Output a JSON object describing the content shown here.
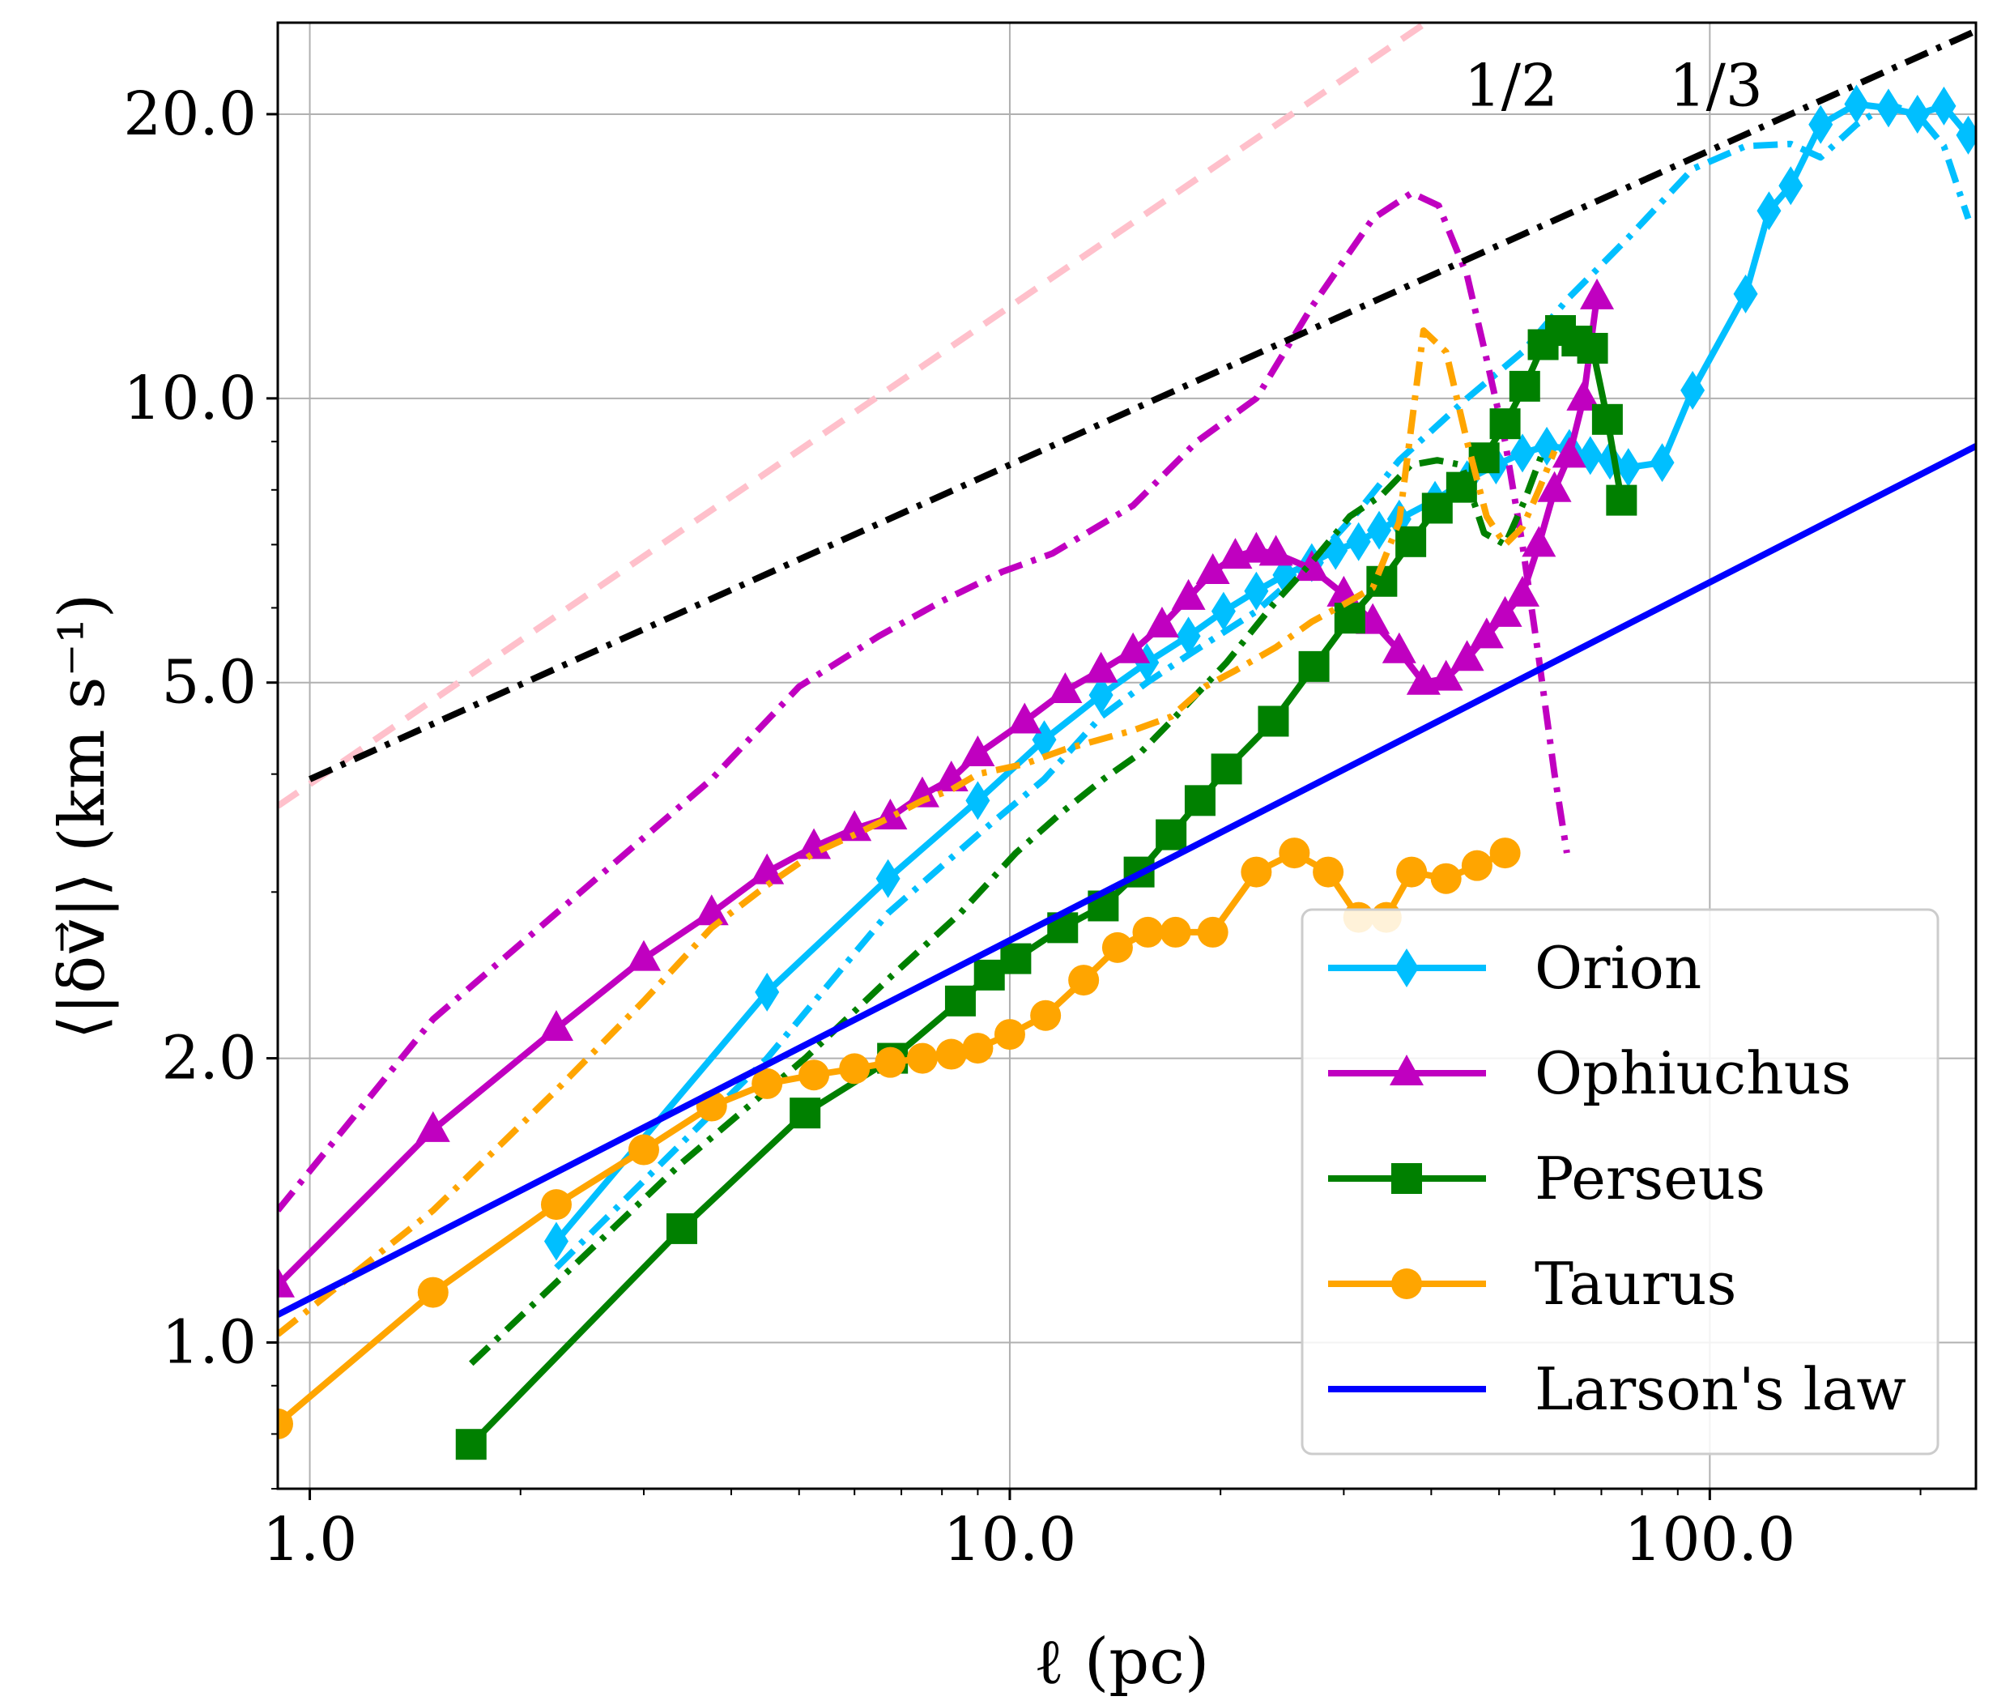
{
  "chart_data": {
    "type": "line",
    "xscale": "log",
    "yscale": "log",
    "xlim": [
      0.9,
      240
    ],
    "ylim": [
      0.7,
      25
    ],
    "xlabel": "ℓ (pc)",
    "ylabel": "⟨|δv⃗|⟩ (km s⁻¹)",
    "xticks": [
      1.0,
      10.0,
      100.0
    ],
    "xtick_labels": [
      "1.0",
      "10.0",
      "100.0"
    ],
    "yticks": [
      1.0,
      2.0,
      5.0,
      10.0,
      20.0
    ],
    "ytick_labels": [
      "1.0",
      "2.0",
      "5.0",
      "10.0",
      "20.0"
    ],
    "grid": true,
    "legend_position": "lower-right",
    "annotations": [
      {
        "text": "1/2",
        "x": 52,
        "y": 21.5
      },
      {
        "text": "1/3",
        "x": 102,
        "y": 21.5
      }
    ],
    "series": [
      {
        "name": "Orion",
        "color": "#00BFFF",
        "style": "solid",
        "marker": "diamond",
        "legend": true,
        "x": [
          2.25,
          4.5,
          6.7,
          9.0,
          11.2,
          13.5,
          15.7,
          18.0,
          20.2,
          22.5,
          24.7,
          27.0,
          29.2,
          31.5,
          33.7,
          36.0,
          40.5,
          45.0,
          49.5,
          54.0,
          58.5,
          63.0,
          67.5,
          72.0,
          76.5,
          85.5,
          94.5,
          112.5,
          121.5,
          130.5,
          144.0,
          162.0,
          180.0,
          198.0,
          216.0,
          234.0
        ],
        "values": [
          1.28,
          2.35,
          3.1,
          3.75,
          4.35,
          4.85,
          5.25,
          5.6,
          5.95,
          6.25,
          6.5,
          6.7,
          6.9,
          7.05,
          7.25,
          7.45,
          7.8,
          8.2,
          8.5,
          8.75,
          8.9,
          8.85,
          8.7,
          8.6,
          8.45,
          8.55,
          10.2,
          12.9,
          15.8,
          16.8,
          19.5,
          20.5,
          20.3,
          20.0,
          20.4,
          19.0
        ]
      },
      {
        "name": "Orion (dash-dot)",
        "color": "#00BFFF",
        "style": "dashdot",
        "marker": "none",
        "legend": false,
        "x": [
          2.25,
          4.5,
          6.7,
          9.0,
          11.2,
          13.5,
          15.7,
          18.0,
          22.5,
          27.0,
          31.5,
          36.0,
          45.0,
          54.0,
          63.0,
          76.5,
          94.5,
          112.5,
          130.5,
          144.0,
          162.0,
          180.0,
          198.0,
          216.0,
          234.0
        ],
        "values": [
          1.2,
          2.0,
          2.85,
          3.45,
          3.95,
          4.6,
          5.0,
          5.35,
          5.95,
          6.7,
          7.6,
          8.6,
          10.0,
          11.2,
          12.8,
          14.8,
          17.5,
          18.5,
          18.6,
          18.0,
          19.5,
          20.5,
          20.0,
          18.5,
          15.5
        ]
      },
      {
        "name": "Ophiuchus",
        "color": "#C000C0",
        "style": "solid",
        "marker": "triangle",
        "legend": true,
        "x": [
          0.9,
          1.5,
          2.25,
          3.0,
          3.75,
          4.5,
          5.25,
          6.0,
          6.75,
          7.5,
          8.25,
          9.0,
          10.5,
          12.0,
          13.5,
          15.0,
          16.5,
          18.0,
          19.5,
          21.0,
          22.5,
          24.0,
          27.0,
          30.0,
          33.0,
          36.0,
          39.0,
          42.0,
          45.0,
          48.0,
          51.0,
          54.0,
          57.0,
          60.0,
          63.0,
          66.0,
          69.0
        ],
        "values": [
          1.15,
          1.68,
          2.15,
          2.55,
          2.85,
          3.15,
          3.35,
          3.5,
          3.6,
          3.8,
          3.95,
          4.2,
          4.55,
          4.9,
          5.15,
          5.4,
          5.75,
          6.15,
          6.55,
          6.8,
          6.9,
          6.85,
          6.6,
          6.2,
          5.8,
          5.4,
          5.0,
          5.05,
          5.3,
          5.6,
          5.9,
          6.2,
          7.0,
          8.0,
          8.7,
          10.0,
          12.8
        ]
      },
      {
        "name": "Ophiuchus (dash-dot)",
        "color": "#C000C0",
        "style": "dashdot",
        "marker": "none",
        "legend": false,
        "x": [
          0.9,
          1.5,
          2.25,
          3.75,
          5.0,
          6.5,
          8.0,
          9.75,
          11.5,
          15.0,
          18.5,
          22.5,
          27.0,
          33.0,
          37.5,
          41.0,
          45.0,
          48.0,
          51.0,
          54.0,
          57.0,
          60.0,
          62.5
        ],
        "values": [
          1.38,
          2.2,
          2.85,
          3.95,
          4.95,
          5.6,
          6.1,
          6.55,
          6.85,
          7.7,
          9.0,
          10.0,
          12.5,
          15.5,
          16.5,
          16.0,
          13.5,
          11.0,
          9.0,
          7.0,
          5.3,
          4.0,
          3.3
        ]
      },
      {
        "name": "Perseus",
        "color": "#008000",
        "style": "solid",
        "marker": "square",
        "legend": true,
        "x": [
          1.7,
          3.4,
          5.1,
          6.8,
          8.5,
          9.35,
          10.2,
          11.9,
          13.6,
          15.3,
          17.0,
          18.7,
          20.4,
          23.8,
          27.2,
          30.6,
          34.0,
          37.4,
          40.8,
          44.2,
          47.6,
          51.0,
          54.4,
          57.8,
          61.2,
          64.6,
          68.0,
          71.4,
          74.8
        ],
        "values": [
          0.78,
          1.32,
          1.75,
          2.0,
          2.3,
          2.45,
          2.55,
          2.75,
          2.9,
          3.15,
          3.45,
          3.75,
          4.05,
          4.55,
          5.2,
          5.85,
          6.4,
          7.05,
          7.65,
          8.05,
          8.65,
          9.4,
          10.3,
          11.4,
          11.8,
          11.5,
          11.3,
          9.5,
          7.8
        ]
      },
      {
        "name": "Perseus (dash-dot)",
        "color": "#008000",
        "style": "dashdot",
        "marker": "none",
        "legend": false,
        "x": [
          1.7,
          3.4,
          5.1,
          6.8,
          8.5,
          10.2,
          11.9,
          13.6,
          15.3,
          17.0,
          20.4,
          23.8,
          27.2,
          30.6,
          34.0,
          37.4,
          40.8,
          44.2,
          47.6,
          51.0,
          54.4,
          57.8
        ],
        "values": [
          0.95,
          1.55,
          2.0,
          2.45,
          2.85,
          3.3,
          3.65,
          3.95,
          4.2,
          4.55,
          5.25,
          6.05,
          6.75,
          7.5,
          7.9,
          8.5,
          8.6,
          8.5,
          7.2,
          7.0,
          7.8,
          8.8
        ]
      },
      {
        "name": "Taurus",
        "color": "#FFA500",
        "style": "solid",
        "marker": "circle",
        "legend": true,
        "x": [
          0.9,
          1.5,
          2.25,
          3.0,
          3.75,
          4.5,
          5.25,
          6.0,
          6.75,
          7.5,
          8.25,
          9.0,
          10.0,
          11.25,
          12.75,
          14.25,
          15.75,
          17.25,
          19.5,
          22.5,
          25.5,
          28.5,
          31.5,
          34.5,
          37.5,
          42.0,
          46.5,
          51.0
        ],
        "values": [
          0.82,
          1.13,
          1.4,
          1.6,
          1.78,
          1.88,
          1.92,
          1.95,
          1.98,
          2.0,
          2.02,
          2.05,
          2.12,
          2.22,
          2.42,
          2.62,
          2.72,
          2.72,
          2.72,
          3.15,
          3.3,
          3.15,
          2.82,
          2.82,
          3.15,
          3.1,
          3.2,
          3.3
        ]
      },
      {
        "name": "Taurus (dash-dot)",
        "color": "#FFA500",
        "style": "dashdot",
        "marker": "none",
        "legend": false,
        "x": [
          0.9,
          1.5,
          2.25,
          3.0,
          3.75,
          4.5,
          5.25,
          6.0,
          6.75,
          7.5,
          8.25,
          9.0,
          10.5,
          12.0,
          15.0,
          17.0,
          19.0,
          21.0,
          24.0,
          27.0,
          30.0,
          33.0,
          36.0,
          39.0,
          42.0,
          45.0,
          48.0,
          51.0,
          54.0,
          57.0,
          60.0
        ],
        "values": [
          1.02,
          1.38,
          1.85,
          2.3,
          2.75,
          3.05,
          3.3,
          3.45,
          3.6,
          3.75,
          3.85,
          4.0,
          4.1,
          4.25,
          4.45,
          4.6,
          4.95,
          5.15,
          5.45,
          5.8,
          6.05,
          6.3,
          7.4,
          11.8,
          11.2,
          9.0,
          7.5,
          7.0,
          7.3,
          8.0,
          8.8
        ]
      },
      {
        "name": "Larson's law",
        "color": "#0000FF",
        "style": "solid",
        "marker": "none",
        "legend": true,
        "x": [
          0.9,
          240
        ],
        "values": [
          1.07,
          8.9
        ]
      },
      {
        "name": "slope 1/2",
        "color": "#FFC0CB",
        "style": "dashed",
        "marker": "none",
        "legend": false,
        "x": [
          0.9,
          39.0
        ],
        "values": [
          3.7,
          24.9
        ]
      },
      {
        "name": "slope 1/3",
        "color": "#000000",
        "style": "dashdot",
        "marker": "none",
        "legend": false,
        "x": [
          1.0,
          240
        ],
        "values": [
          3.95,
          24.5
        ]
      }
    ]
  }
}
